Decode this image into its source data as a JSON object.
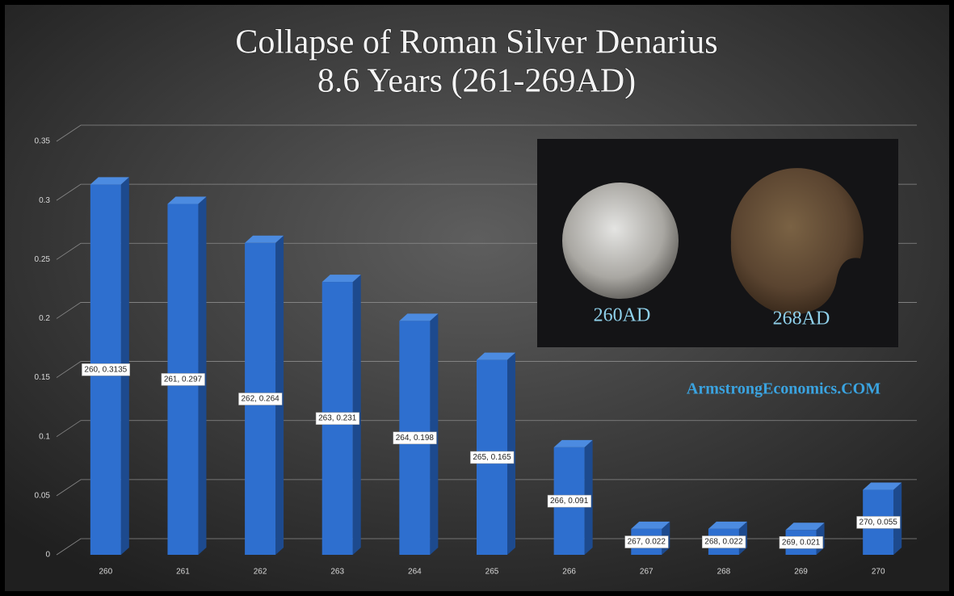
{
  "chart_data": {
    "type": "bar",
    "title": "Collapse of Roman Silver Denarius",
    "subtitle": "8.6 Years (261-269AD)",
    "categories": [
      "260",
      "261",
      "262",
      "263",
      "264",
      "265",
      "266",
      "267",
      "268",
      "269",
      "270"
    ],
    "values": [
      0.3135,
      0.297,
      0.264,
      0.231,
      0.198,
      0.165,
      0.091,
      0.022,
      0.022,
      0.021,
      0.055
    ],
    "value_labels": [
      "260, 0.3135",
      "261, 0.297",
      "262, 0.264",
      "263, 0.231",
      "264, 0.198",
      "265, 0.165",
      "266, 0.091",
      "267, 0.022",
      "268, 0.022",
      "269, 0.021",
      "270, 0.055"
    ],
    "color": "#2e6fcf",
    "ylim": [
      0,
      0.35
    ],
    "yticks": [
      0,
      0.05,
      0.1,
      0.15,
      0.2,
      0.25,
      0.3,
      0.35
    ],
    "grid": true,
    "annotations": [
      "260AD",
      "268AD",
      "ArmstrongEconomics.COM"
    ]
  }
}
